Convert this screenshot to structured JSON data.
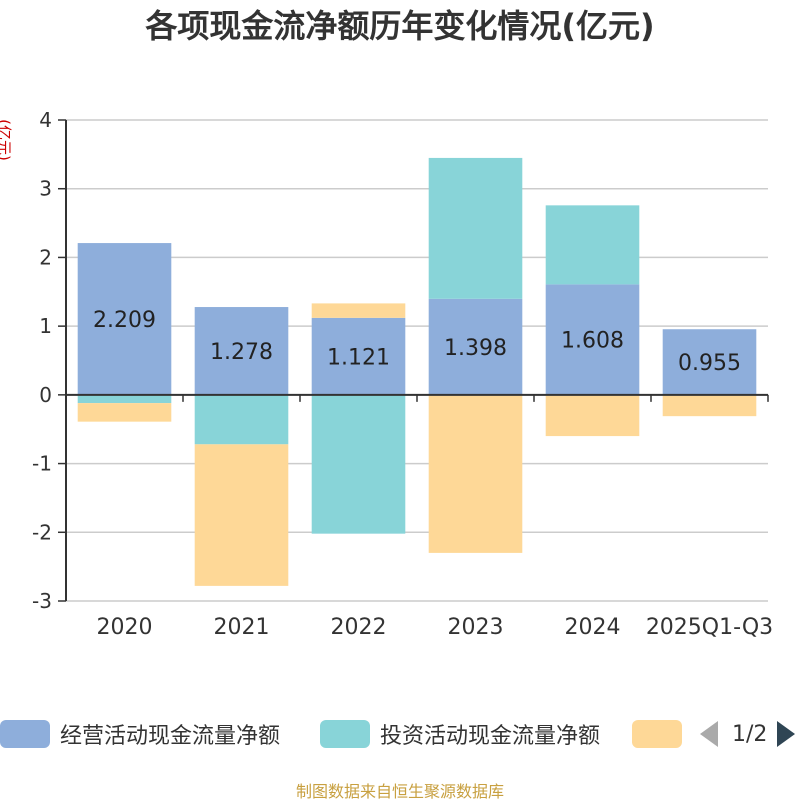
{
  "chart_data": {
    "type": "bar",
    "stacked": true,
    "title": "各项现金流净额历年变化情况(亿元)",
    "ylabel": "(亿元)",
    "ylim": [
      -3,
      4
    ],
    "yticks": [
      4,
      3,
      2,
      1,
      0,
      -1,
      -2,
      -3
    ],
    "grid": true,
    "legend_position": "bottom",
    "categories": [
      "2020",
      "2021",
      "2022",
      "2023",
      "2024",
      "2025Q1-Q3"
    ],
    "series": [
      {
        "name": "经营活动现金流量净额",
        "color": "#8eaedb",
        "values": [
          2.209,
          1.278,
          1.121,
          1.398,
          1.608,
          0.955
        ],
        "show_labels": true
      },
      {
        "name": "投资活动现金流量净额",
        "color": "#88d4d8",
        "values": [
          -0.12,
          -0.72,
          -2.02,
          2.05,
          1.15,
          -0.01
        ],
        "show_labels": false
      },
      {
        "name": "",
        "color": "#fed897",
        "values": [
          -0.27,
          -2.06,
          0.21,
          -2.3,
          -0.6,
          -0.3
        ],
        "show_labels": false
      }
    ]
  },
  "legend": {
    "items": [
      {
        "label": "经营活动现金流量净额",
        "color": "#8eaedb"
      },
      {
        "label": "投资活动现金流量净额",
        "color": "#88d4d8"
      },
      {
        "label": "",
        "color": "#fed897"
      }
    ],
    "page_indicator": "1/2"
  },
  "footer": {
    "source": "制图数据来自恒生聚源数据库"
  }
}
